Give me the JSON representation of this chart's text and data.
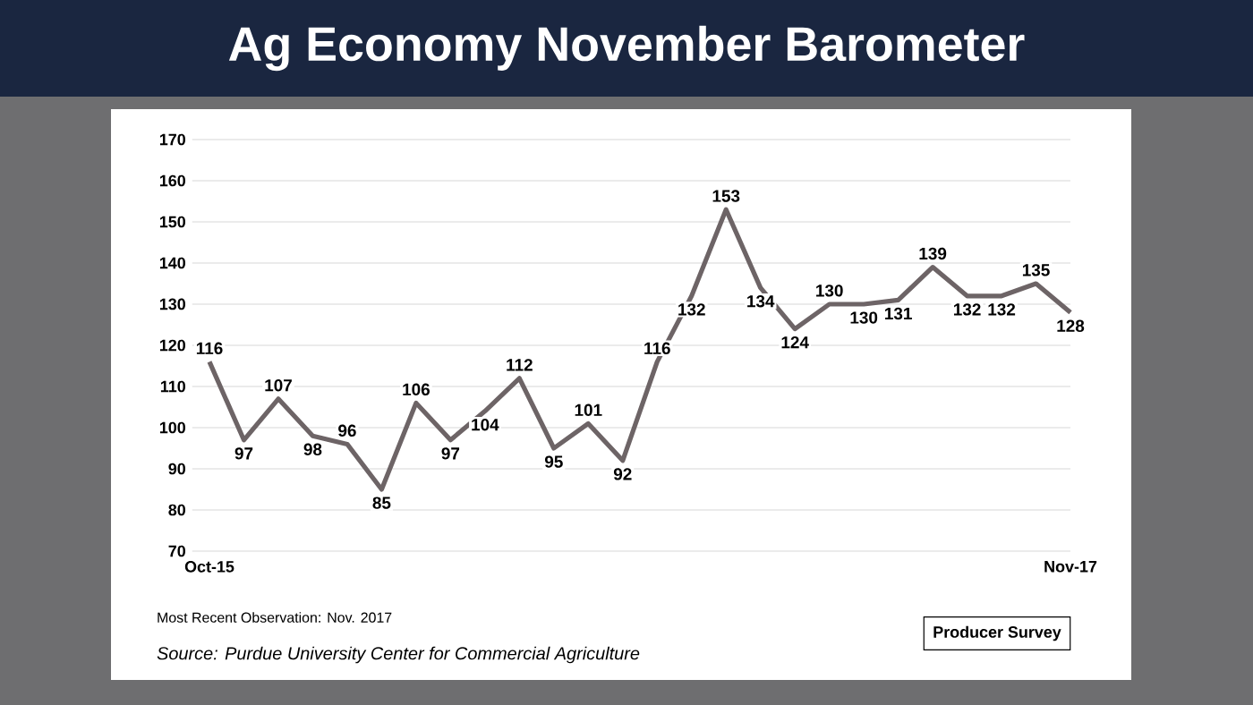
{
  "chart_data": {
    "type": "line",
    "title": "Ag Economy November Barometer",
    "categories": [
      "Oct-15",
      null,
      null,
      null,
      null,
      null,
      null,
      null,
      null,
      null,
      null,
      null,
      null,
      null,
      null,
      null,
      null,
      null,
      null,
      null,
      null,
      null,
      null,
      null,
      null,
      "Nov-17"
    ],
    "values": [
      116,
      97,
      107,
      98,
      96,
      85,
      106,
      97,
      104,
      112,
      95,
      101,
      92,
      116,
      132,
      153,
      134,
      124,
      130,
      130,
      131,
      139,
      132,
      132,
      135,
      128
    ],
    "color": "#6d6466",
    "ylim": [
      70,
      170
    ],
    "yticks": [
      70,
      80,
      90,
      100,
      110,
      120,
      130,
      140,
      150,
      160,
      170
    ],
    "grid": "y",
    "data_labels": true,
    "marker": "none",
    "line_style": "solid",
    "annotations": [
      "Most Recent Observation: Nov. 2017",
      "Source: Purdue University Center for Commercial Agriculture",
      "Producer Survey"
    ]
  }
}
